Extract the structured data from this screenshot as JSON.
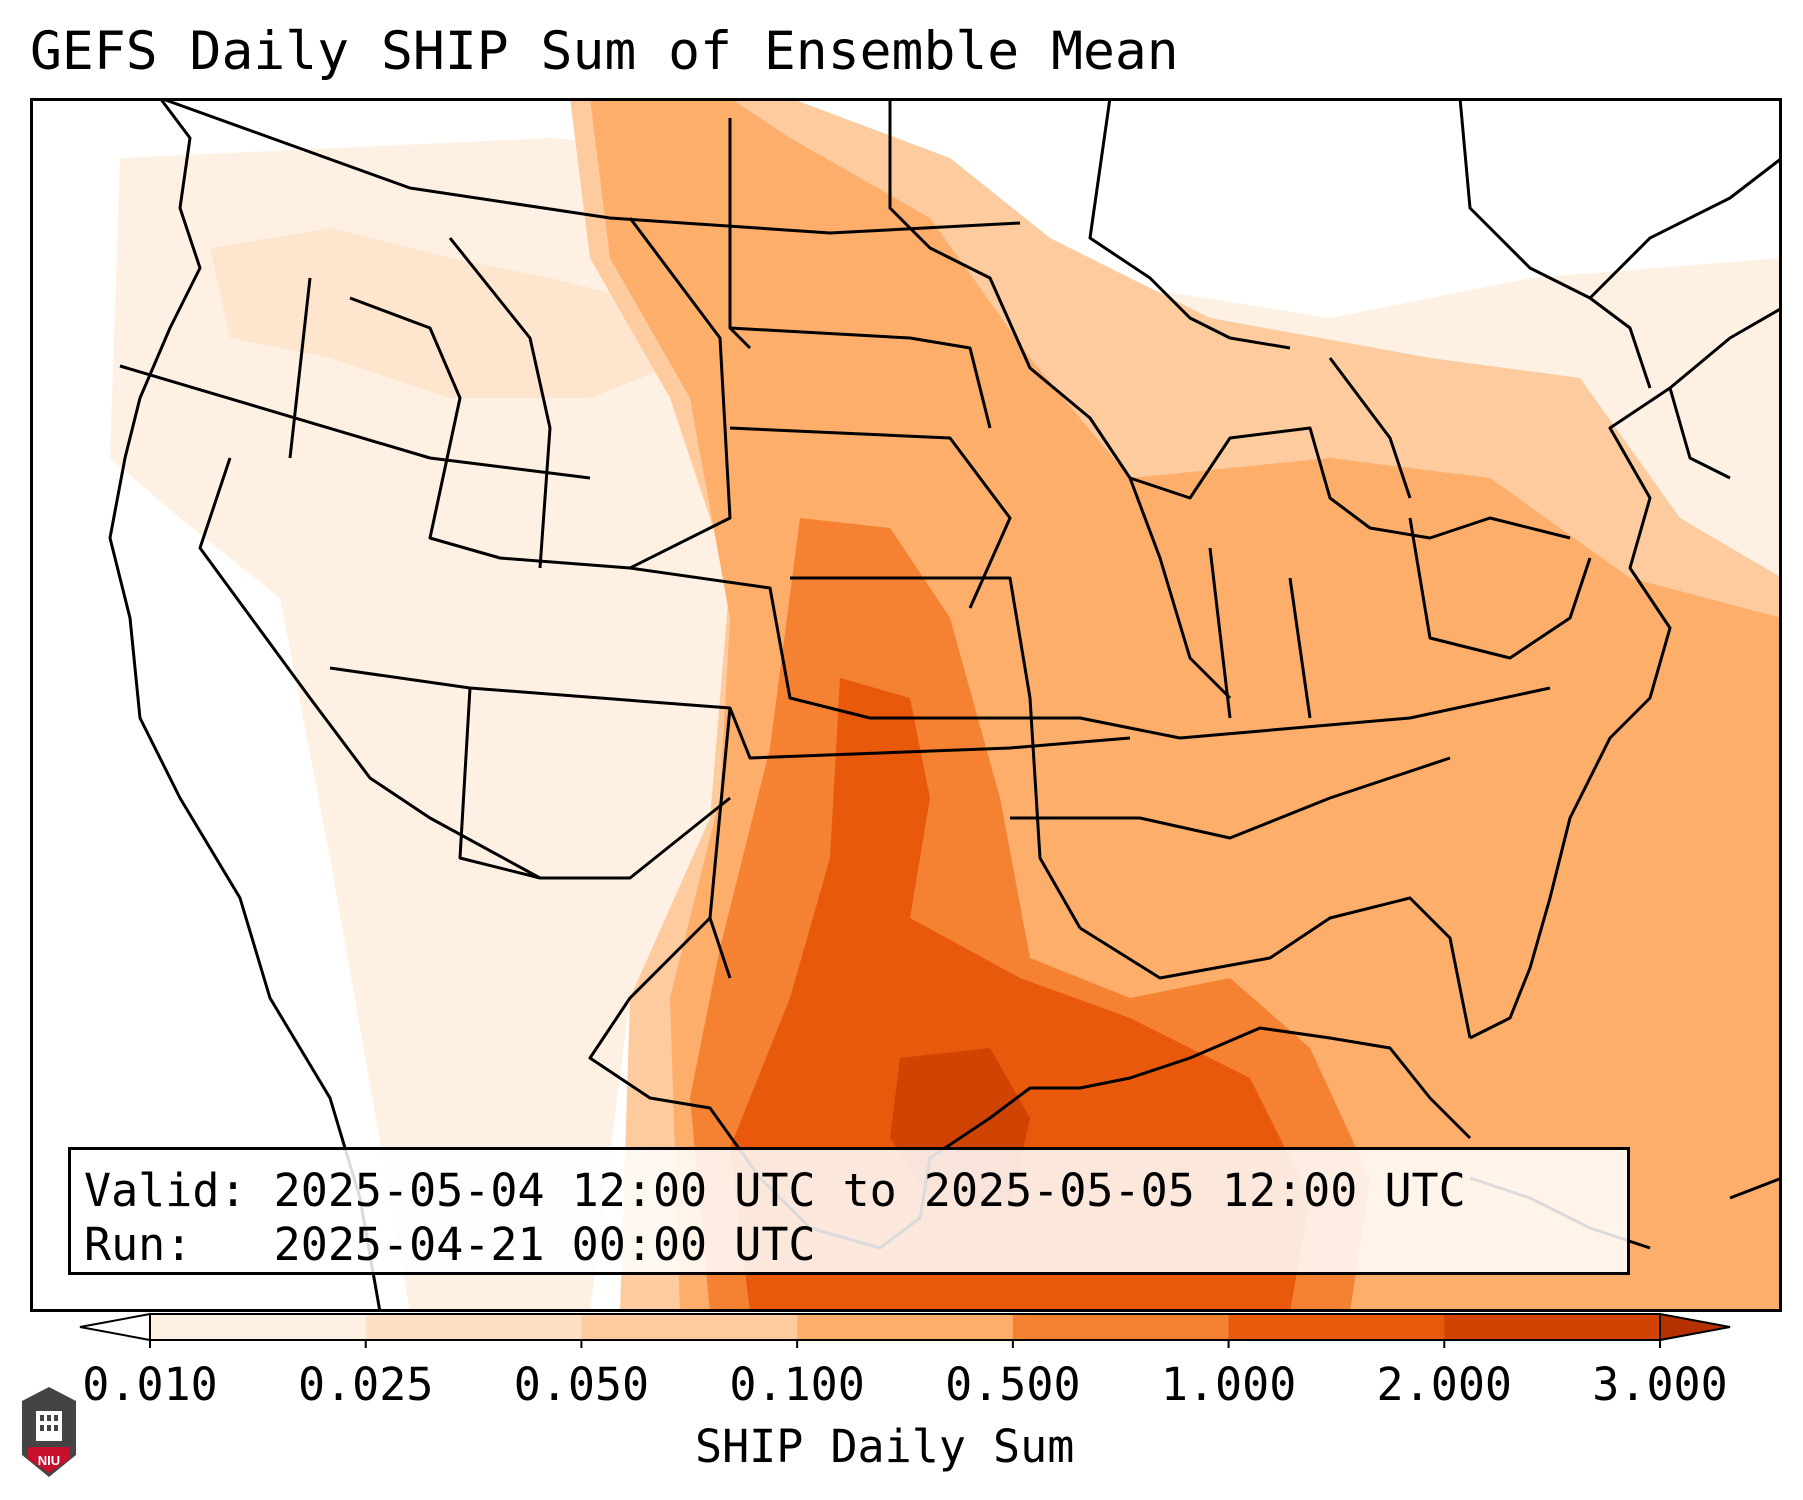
{
  "title": "GEFS Daily SHIP Sum of Ensemble Mean",
  "info": {
    "valid_label": "Valid:",
    "valid_value": "2025-05-04 12:00 UTC to 2025-05-05 12:00 UTC",
    "run_label": "Run:",
    "run_value": "2025-04-21 00:00 UTC"
  },
  "colorbar": {
    "label": "SHIP Daily Sum",
    "ticks": [
      "0.010",
      "0.025",
      "0.050",
      "0.100",
      "0.500",
      "1.000",
      "2.000",
      "3.000"
    ],
    "colors": [
      "#fff0e4",
      "#fde0c5",
      "#fdcb9e",
      "#fdae6b",
      "#f58232",
      "#e8590c",
      "#d14303"
    ],
    "under_color": "#ffffff",
    "over_color": "#b33200",
    "extend": "both"
  },
  "logo": {
    "text": "NIU",
    "icon": "niu-logo-icon"
  },
  "colors": {
    "border": "#000000",
    "background": "#ffffff"
  }
}
